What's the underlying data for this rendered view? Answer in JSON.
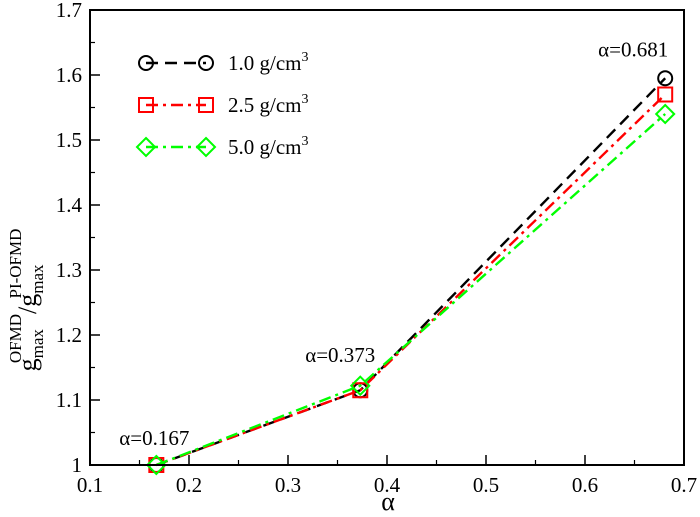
{
  "chart_data": {
    "type": "line",
    "xlabel": "α",
    "ylabel": {
      "g1": "g",
      "sub1": "max",
      "sup1": "OFMD",
      "slash": "/",
      "g2": "g",
      "sub2": "max",
      "sup2": "PI-OFMD"
    },
    "xlim": [
      0.1,
      0.7
    ],
    "ylim": [
      1.0,
      1.7
    ],
    "xticks": [
      0.1,
      0.2,
      0.3,
      0.4,
      0.5,
      0.6,
      0.7
    ],
    "yticks": [
      1.0,
      1.1,
      1.2,
      1.3,
      1.4,
      1.5,
      1.6,
      1.7
    ],
    "xtick_labels": [
      "0.1",
      "0.2",
      "0.3",
      "0.4",
      "0.5",
      "0.6",
      "0.7"
    ],
    "ytick_labels": [
      "1",
      "1.1",
      "1.2",
      "1.3",
      "1.4",
      "1.5",
      "1.6",
      "1.7"
    ],
    "grid": false,
    "legend_position": "top-left",
    "series": [
      {
        "label_value": "1.0 g/cm",
        "label_sup": "3",
        "color": "#000000",
        "marker": "circle",
        "dash": "dashed",
        "x": [
          0.167,
          0.373,
          0.681
        ],
        "y": [
          1.0,
          1.115,
          1.595
        ]
      },
      {
        "label_value": "2.5 g/cm",
        "label_sup": "3",
        "color": "#ff0000",
        "marker": "square",
        "dash": "dashdot",
        "x": [
          0.167,
          0.373,
          0.681
        ],
        "y": [
          1.0,
          1.115,
          1.57
        ]
      },
      {
        "label_value": "5.0 g/cm",
        "label_sup": "3",
        "color": "#00ff00",
        "marker": "diamond",
        "dash": "dashdot",
        "x": [
          0.167,
          0.373,
          0.681
        ],
        "y": [
          1.0,
          1.122,
          1.54
        ]
      }
    ],
    "annotations": [
      {
        "text": "α=0.167",
        "x": 0.167,
        "y": 1.0
      },
      {
        "text": "α=0.373",
        "x": 0.373,
        "y": 1.12
      },
      {
        "text": "α=0.681",
        "x": 0.681,
        "y": 1.595
      }
    ]
  }
}
